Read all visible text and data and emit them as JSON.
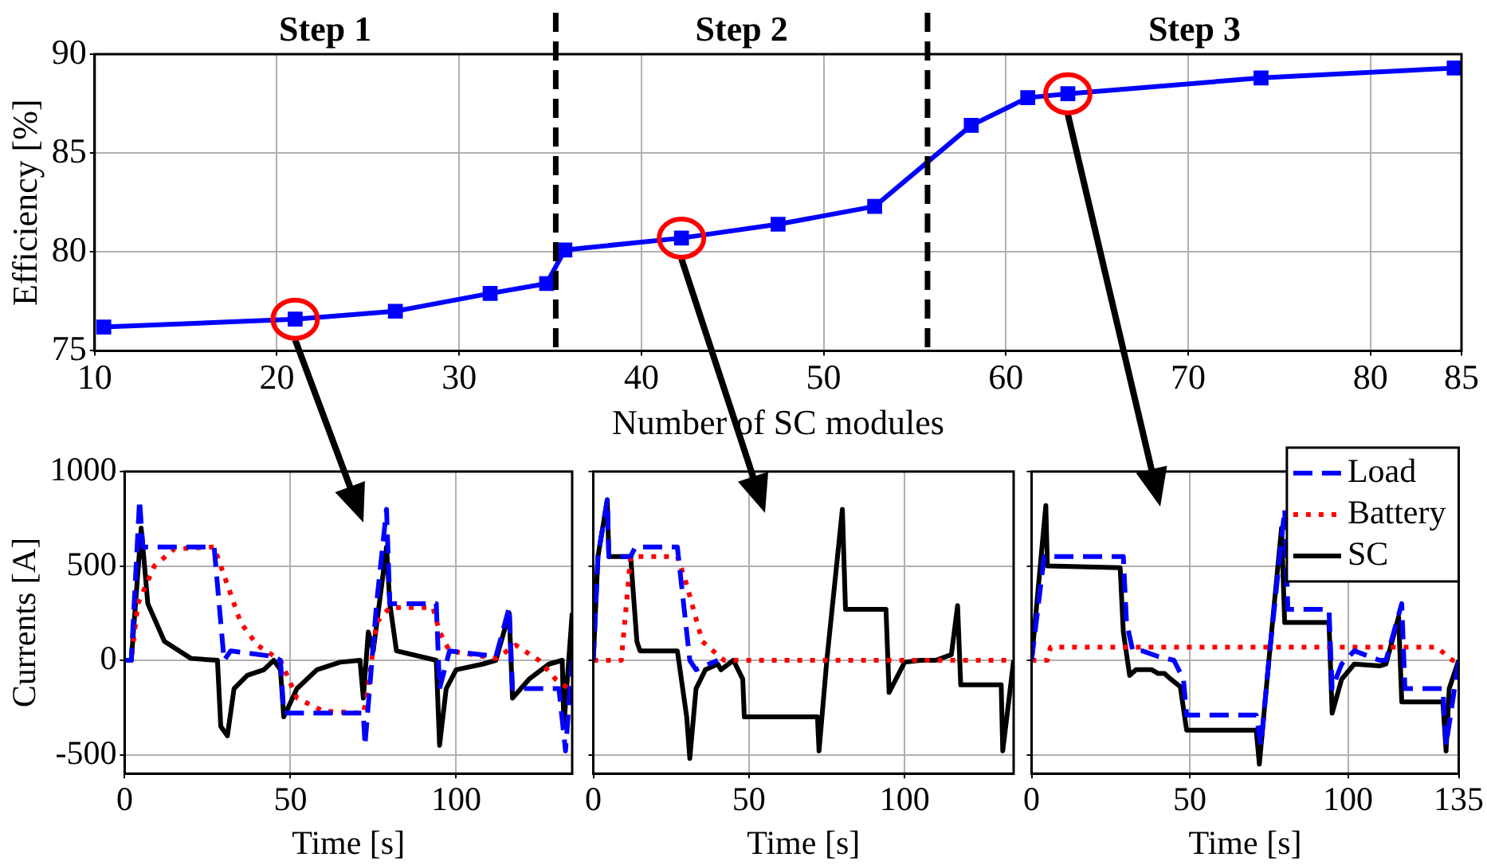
{
  "chart_data": [
    {
      "type": "line",
      "xlabel": "Number of SC modules",
      "ylabel": "Efficiency [%]",
      "x": [
        10.5,
        21,
        26.5,
        31.7,
        34.8,
        35.8,
        42.2,
        47.5,
        52.8,
        58.1,
        61.2,
        63.4,
        74,
        84.6
      ],
      "values": [
        76.2,
        76.6,
        77.0,
        77.9,
        78.4,
        80.1,
        80.7,
        81.4,
        82.3,
        86.4,
        87.8,
        88.0,
        88.8,
        89.3
      ],
      "color": "#0000ff",
      "marker": "square",
      "xlim": [
        10,
        85
      ],
      "xticks": [
        10,
        20,
        30,
        40,
        50,
        60,
        70,
        80,
        85
      ],
      "ylim": [
        75,
        90
      ],
      "yticks": [
        75,
        80,
        85,
        90
      ],
      "grid": true,
      "ref_lines": [
        {
          "axis": "x",
          "value": 35.3,
          "color": "#000000",
          "line_style": "dashed"
        },
        {
          "axis": "x",
          "value": 55.7,
          "color": "#000000",
          "line_style": "dashed"
        }
      ],
      "annotations": [
        "Step 1",
        "Step 2",
        "Step 3"
      ]
    },
    {
      "type": "line",
      "xlabel": "Time [s]",
      "ylabel": "Currents [A]",
      "xlim": [
        0,
        135
      ],
      "xticks": [
        0,
        50,
        100
      ],
      "ylim": [
        -600,
        1000
      ],
      "yticks": [
        -500,
        0,
        500,
        1000
      ],
      "grid": true,
      "series": [
        {
          "color": "#0000ff",
          "line_style": "dashed",
          "x": [
            0,
            2,
            4.5,
            5.5,
            27,
            30,
            32,
            45,
            47,
            48,
            72,
            72.5,
            76,
            79,
            80,
            94,
            95,
            98,
            112,
            116,
            117,
            131,
            133,
            135
          ],
          "values": [
            0,
            0,
            850,
            600,
            600,
            0,
            50,
            20,
            0,
            -280,
            -280,
            -450,
            300,
            800,
            300,
            300,
            -150,
            50,
            20,
            280,
            -150,
            -150,
            -480,
            0
          ]
        },
        {
          "color": "#ff0000",
          "line_style": "dotted",
          "x": [
            0,
            2,
            4,
            9,
            15,
            27,
            31,
            35,
            40,
            47,
            52,
            60,
            72,
            73,
            76,
            80,
            93,
            95,
            98,
            105,
            112,
            118,
            125,
            130,
            134
          ],
          "values": [
            0,
            0,
            300,
            500,
            590,
            600,
            400,
            200,
            80,
            0,
            -200,
            -270,
            -280,
            -200,
            200,
            280,
            280,
            150,
            50,
            30,
            10,
            80,
            0,
            -100,
            -150
          ]
        },
        {
          "color": "#000000",
          "line_style": "solid",
          "x": [
            0,
            2,
            5,
            7,
            12,
            20,
            28,
            29,
            31,
            33,
            37,
            42,
            45,
            47,
            48,
            52,
            58,
            65,
            71,
            72,
            73.5,
            75,
            79,
            80,
            82,
            94,
            95,
            97,
            100,
            108,
            112,
            116,
            117,
            122,
            128,
            132,
            132.5,
            135
          ],
          "values": [
            0,
            0,
            700,
            300,
            100,
            10,
            0,
            -350,
            -400,
            -150,
            -80,
            -50,
            0,
            -50,
            -300,
            -150,
            -50,
            -10,
            0,
            -200,
            150,
            50,
            600,
            300,
            50,
            0,
            -450,
            -150,
            -50,
            -20,
            0,
            250,
            -200,
            -100,
            -20,
            0,
            -350,
            250
          ]
        }
      ]
    },
    {
      "type": "line",
      "xlabel": "Time [s]",
      "xlim": [
        0,
        135
      ],
      "xticks": [
        0,
        50,
        100
      ],
      "ylim": [
        -600,
        1000
      ],
      "yticks": [
        -500,
        0,
        500,
        1000
      ],
      "grid": true,
      "tick_labels": "x",
      "series": [
        {
          "color": "#0000ff",
          "line_style": "dashed",
          "x": [
            0,
            1.5,
            4.5,
            5,
            12,
            13.5,
            27,
            31,
            33,
            40
          ],
          "values": [
            0,
            550,
            850,
            550,
            550,
            600,
            600,
            0,
            -50,
            0
          ]
        },
        {
          "color": "#ff0000",
          "line_style": "dotted",
          "x": [
            0,
            9,
            12,
            27,
            30,
            35,
            42,
            135
          ],
          "values": [
            0,
            0,
            550,
            550,
            400,
            100,
            0,
            0
          ]
        },
        {
          "color": "#000000",
          "line_style": "solid",
          "x": [
            0,
            1.5,
            4.5,
            5,
            12,
            14,
            15,
            27,
            30,
            31,
            33,
            36,
            40,
            41,
            45,
            48,
            48.5,
            72,
            72.5,
            75,
            80,
            81,
            94,
            95,
            100,
            105,
            110,
            115,
            117,
            118,
            131,
            131.5,
            135
          ],
          "values": [
            0,
            550,
            850,
            550,
            550,
            100,
            50,
            50,
            -300,
            -520,
            -150,
            -50,
            -20,
            -50,
            0,
            -100,
            -300,
            -300,
            -480,
            0,
            800,
            270,
            270,
            -170,
            -10,
            0,
            0,
            30,
            290,
            -130,
            -130,
            -480,
            0
          ]
        }
      ]
    },
    {
      "type": "line",
      "xlabel": "Time [s]",
      "xlim": [
        0,
        135
      ],
      "xticks": [
        0,
        50,
        100,
        135
      ],
      "ylim": [
        -600,
        1000
      ],
      "yticks": [
        -500,
        0,
        500,
        1000
      ],
      "grid": true,
      "tick_labels": "x",
      "legend": "top right",
      "series": [
        {
          "name": "Load",
          "color": "#0000ff",
          "line_style": "dashed",
          "x": [
            0,
            4,
            29,
            30,
            32,
            35,
            40,
            45,
            48,
            49,
            71,
            72.5,
            75,
            80,
            81,
            94,
            95,
            98,
            102,
            110,
            112,
            117,
            118,
            130,
            131,
            135
          ],
          "values": [
            0,
            550,
            550,
            200,
            50,
            50,
            20,
            0,
            -100,
            -290,
            -290,
            -450,
            0,
            800,
            270,
            270,
            -150,
            -20,
            50,
            0,
            0,
            300,
            -150,
            -150,
            -450,
            0
          ]
        },
        {
          "name": "Battery",
          "color": "#ff0000",
          "line_style": "dotted",
          "x": [
            0,
            5,
            6,
            128,
            133,
            135
          ],
          "values": [
            0,
            0,
            70,
            70,
            0,
            0
          ]
        },
        {
          "name": "SC",
          "color": "#000000",
          "line_style": "solid",
          "x": [
            0,
            4.5,
            5,
            28,
            29,
            31,
            33,
            38,
            40,
            42,
            44,
            47,
            49,
            71,
            72,
            75,
            79,
            80,
            94,
            95,
            98,
            102,
            110,
            112,
            116,
            117,
            130,
            131,
            132,
            135
          ],
          "values": [
            0,
            820,
            500,
            490,
            150,
            -80,
            -50,
            -50,
            -70,
            -70,
            -100,
            -140,
            -370,
            -370,
            -550,
            0,
            700,
            200,
            200,
            -280,
            -100,
            -20,
            -30,
            -20,
            230,
            -220,
            -220,
            -480,
            -150,
            0
          ]
        }
      ]
    }
  ]
}
